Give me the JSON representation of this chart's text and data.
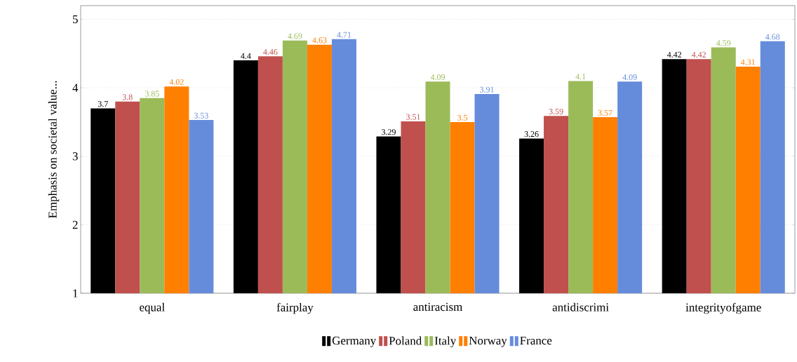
{
  "chart_data": {
    "type": "bar",
    "ylabel": "Emphasis on societal value...",
    "categories": [
      "equal",
      "fairplay",
      "antiracism",
      "antidiscrimi",
      "integrityofgame"
    ],
    "series": [
      {
        "name": "Germany",
        "color": "#000000",
        "values": [
          3.7,
          4.4,
          3.29,
          3.26,
          4.42
        ]
      },
      {
        "name": "Poland",
        "color": "#c0504d",
        "values": [
          3.8,
          4.46,
          3.51,
          3.59,
          4.42
        ]
      },
      {
        "name": "Italy",
        "color": "#9bbb59",
        "values": [
          3.85,
          4.69,
          4.09,
          4.1,
          4.59
        ]
      },
      {
        "name": "Norway",
        "color": "#ff7f00",
        "values": [
          4.02,
          4.63,
          3.5,
          3.57,
          4.31
        ]
      },
      {
        "name": "France",
        "color": "#658cdb",
        "values": [
          3.53,
          4.71,
          3.91,
          4.09,
          4.68
        ]
      }
    ],
    "ylim": [
      1,
      5.2
    ],
    "yticks": [
      1,
      2,
      3,
      4,
      5
    ],
    "grid": "y",
    "legend": "bottom",
    "data_labels": true
  }
}
